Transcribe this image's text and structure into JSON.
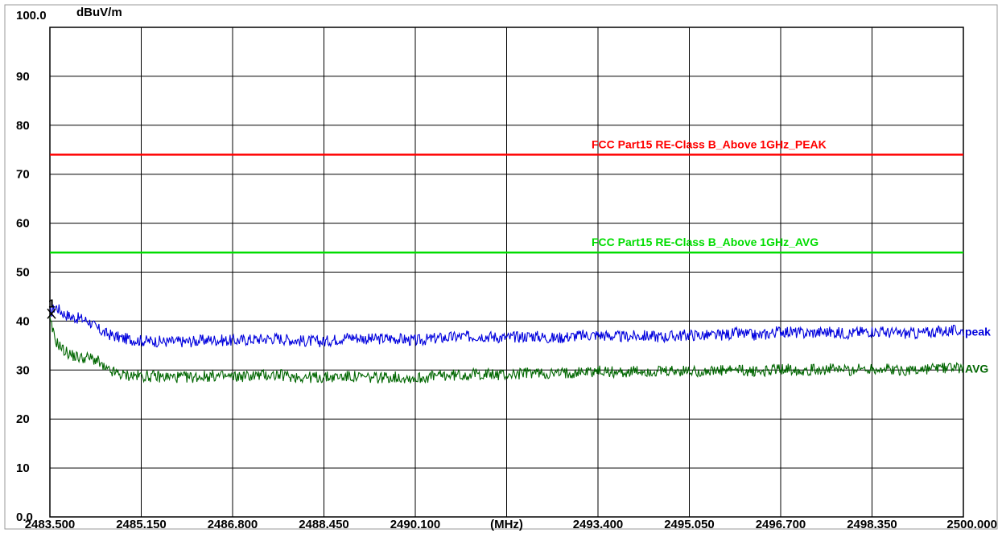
{
  "chart_data": {
    "type": "line",
    "title": "",
    "ylabel": "dBuV/m",
    "xlabel": "(MHz)",
    "xlim": [
      2483.5,
      2500.0
    ],
    "ylim": [
      0,
      100
    ],
    "grid": true,
    "y_ticks": [
      {
        "value": 100,
        "label": "100.0"
      },
      {
        "value": 90,
        "label": "90"
      },
      {
        "value": 80,
        "label": "80"
      },
      {
        "value": 70,
        "label": "70"
      },
      {
        "value": 60,
        "label": "60"
      },
      {
        "value": 50,
        "label": "50"
      },
      {
        "value": 40,
        "label": "40"
      },
      {
        "value": 30,
        "label": "30"
      },
      {
        "value": 20,
        "label": "20"
      },
      {
        "value": 10,
        "label": "10"
      },
      {
        "value": 0,
        "label": "0.0"
      }
    ],
    "x_ticks": [
      {
        "value": 2483.5,
        "label": "2483.500"
      },
      {
        "value": 2485.15,
        "label": "2485.150"
      },
      {
        "value": 2486.8,
        "label": "2486.800"
      },
      {
        "value": 2488.45,
        "label": "2488.450"
      },
      {
        "value": 2490.1,
        "label": "2490.100"
      },
      {
        "value": 2491.75,
        "label": "(MHz)"
      },
      {
        "value": 2493.4,
        "label": "2493.400"
      },
      {
        "value": 2495.05,
        "label": "2495.050"
      },
      {
        "value": 2496.7,
        "label": "2496.700"
      },
      {
        "value": 2498.35,
        "label": "2498.350"
      },
      {
        "value": 2500.0,
        "label": "2500.000"
      }
    ],
    "limit_lines": [
      {
        "name": "FCC Part15 RE-Class B_Above 1GHz_PEAK",
        "value": 74,
        "color": "#ff0000"
      },
      {
        "name": "FCC Part15 RE-Class B_Above 1GHz_AVG",
        "value": 54,
        "color": "#00dd00"
      }
    ],
    "series": [
      {
        "name": "peak",
        "color": "#0000dd",
        "x": [
          2483.5,
          2483.6,
          2483.75,
          2483.9,
          2484.05,
          2484.2,
          2484.35,
          2484.5,
          2484.65,
          2484.8,
          2485.15,
          2485.6,
          2486.0,
          2486.4,
          2486.8,
          2487.2,
          2487.6,
          2488.0,
          2488.45,
          2488.9,
          2489.3,
          2489.7,
          2490.1,
          2490.5,
          2490.9,
          2491.3,
          2491.75,
          2492.2,
          2492.6,
          2493.0,
          2493.4,
          2493.8,
          2494.2,
          2494.6,
          2495.05,
          2495.5,
          2495.9,
          2496.3,
          2496.7,
          2497.1,
          2497.5,
          2497.9,
          2498.35,
          2498.8,
          2499.2,
          2499.6,
          2500.0
        ],
        "values": [
          41.5,
          43.0,
          41.5,
          40.8,
          40.5,
          40.0,
          38.5,
          37.5,
          37.0,
          36.5,
          36.0,
          35.8,
          35.8,
          36.2,
          36.0,
          36.3,
          36.5,
          36.0,
          35.8,
          36.8,
          36.3,
          36.5,
          36.0,
          36.5,
          36.8,
          37.0,
          36.6,
          37.0,
          36.5,
          37.0,
          37.2,
          36.8,
          37.0,
          36.8,
          37.2,
          37.0,
          37.5,
          37.0,
          38.0,
          37.5,
          37.8,
          37.5,
          38.0,
          37.5,
          37.5,
          38.0,
          38.0
        ]
      },
      {
        "name": "AVG",
        "color": "#006600",
        "x": [
          2483.5,
          2483.6,
          2483.75,
          2483.9,
          2484.05,
          2484.2,
          2484.35,
          2484.5,
          2484.65,
          2484.8,
          2485.15,
          2485.6,
          2486.0,
          2486.4,
          2486.8,
          2487.2,
          2487.6,
          2488.0,
          2488.45,
          2488.9,
          2489.3,
          2489.7,
          2490.1,
          2490.5,
          2490.9,
          2491.3,
          2491.75,
          2492.2,
          2492.6,
          2493.0,
          2493.4,
          2493.8,
          2494.2,
          2494.6,
          2495.05,
          2495.5,
          2495.9,
          2496.3,
          2496.7,
          2497.1,
          2497.5,
          2497.9,
          2498.35,
          2498.8,
          2499.2,
          2499.6,
          2500.0
        ],
        "values": [
          40.0,
          36.0,
          34.0,
          33.0,
          32.5,
          32.5,
          32.0,
          30.0,
          29.5,
          29.0,
          28.8,
          28.6,
          28.5,
          28.8,
          28.6,
          28.9,
          29.0,
          28.6,
          28.5,
          28.7,
          28.4,
          28.6,
          28.3,
          28.8,
          29.0,
          29.2,
          29.0,
          29.5,
          29.2,
          29.6,
          29.8,
          29.5,
          29.7,
          29.6,
          29.8,
          29.7,
          30.0,
          29.6,
          30.3,
          30.0,
          30.2,
          30.0,
          30.3,
          30.0,
          30.0,
          30.5,
          30.5
        ]
      }
    ],
    "marker": {
      "label": "1"
    }
  }
}
